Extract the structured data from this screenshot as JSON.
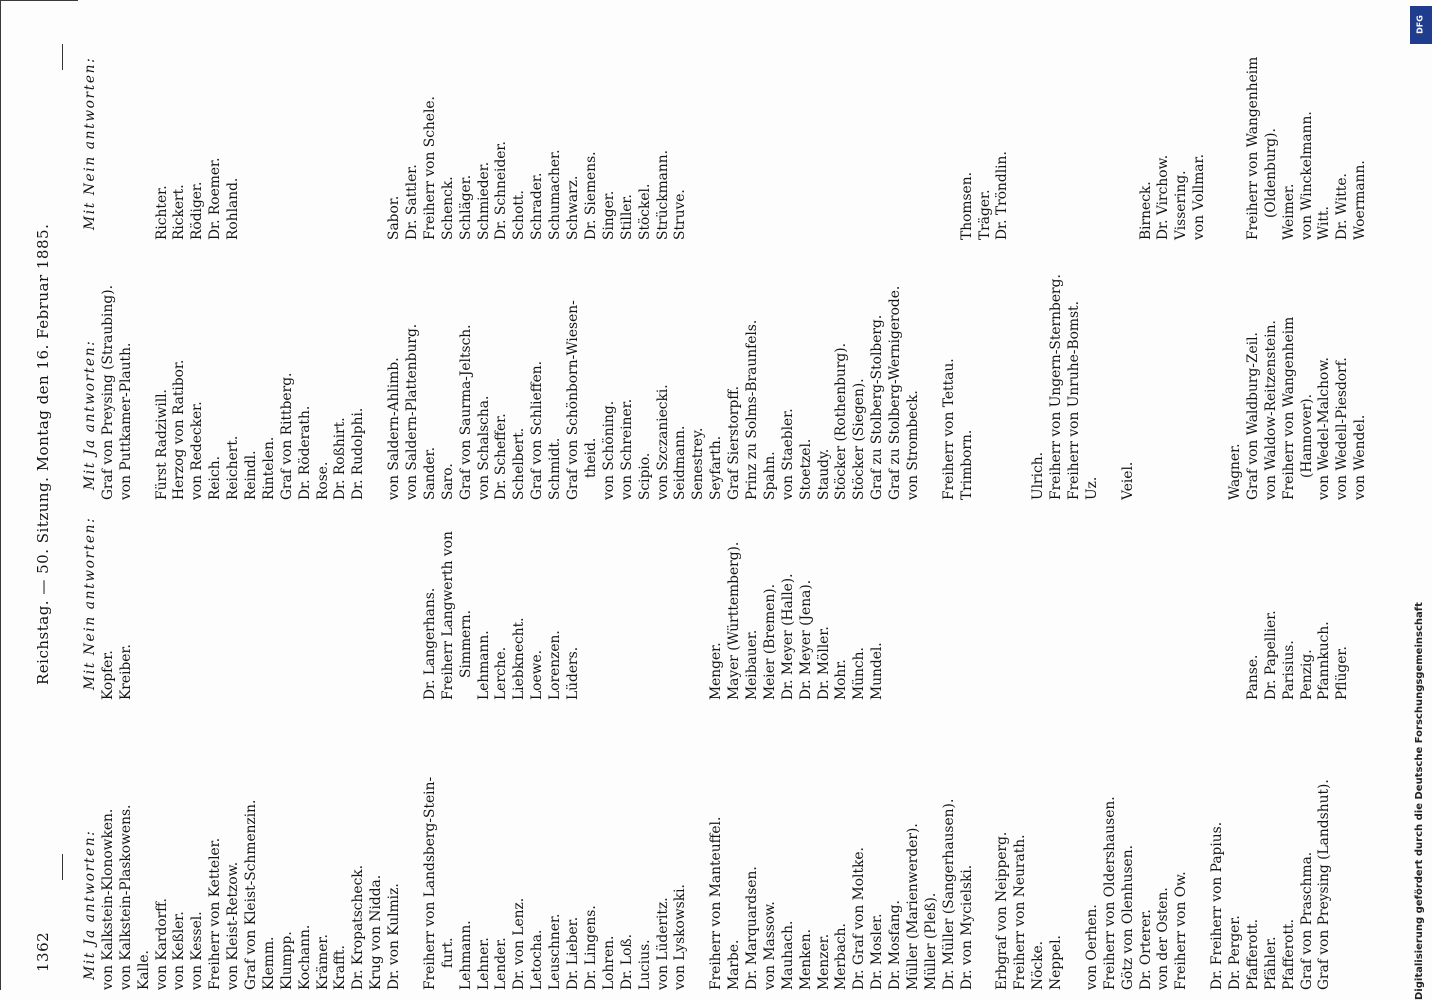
{
  "header": {
    "page_number": "1362",
    "title": "Reichstag. — 50. Sitzung. Montag den 16. Februar 1885."
  },
  "credit": "Digitalisierung gefördert durch die Deutsche Forschungsgemeinschaft",
  "stamp": "DFG",
  "columns": [
    {
      "head": "Mit Ja antworten:",
      "lines": [
        "von Kalkstein-Klonowken.",
        "von Kalkstein-Plaskowens.",
        "Kalle.",
        "von Kardorff.",
        "von Keßler.",
        "von Kessel.",
        "Freiherr von Ketteler.",
        "von Kleist-Retzow.",
        "Graf von Kleist-Schmenzin.",
        "Klemm.",
        "Klumpp.",
        "Kochann.",
        "Krämer.",
        "Krafft.",
        "Dr. Kropatscheck.",
        "Krug von Nidda.",
        "Dr. von Kulmiz.",
        "",
        "Freiherr von Landsberg-Stein-",
        "_furt.",
        "Lehmann.",
        "Lehner.",
        "Lender.",
        "Dr. von Lenz.",
        "Letocha.",
        "Leuschner.",
        "Dr. Lieber.",
        "Dr. Lingens.",
        "Lohren.",
        "Dr. Loß.",
        "Lucius.",
        "von Lüderitz.",
        "von Lyskowski.",
        "",
        "Freiherr von Manteuffel.",
        "Marbe.",
        "Dr. Marquardsen.",
        "von Massow.",
        "Mauhach.",
        "Menken.",
        "Menzer.",
        "Merbach.",
        "Dr. Graf von Moltke.",
        "Dr. Mosler.",
        "Dr. Mosfang.",
        "Müller (Marienwerder).",
        "Müller (Pleß).",
        "Dr. Müller (Sangerhausen).",
        "Dr. von Mycielski.",
        "",
        "Erbgraf von Neipperg.",
        "Freiherr von Neurath.",
        "Nöcke.",
        "Neppel.",
        "",
        "von Oerhen.",
        "Freiherr von Oldershausen.",
        "Götz von Olenhusen.",
        "Dr. Orterer.",
        "von der Osten.",
        "Freiherr von Ow.",
        "",
        "Dr. Freiherr von Papius.",
        "Dr. Perger.",
        "Pfafferott.",
        "Pfähler.",
        "Pfafferott.",
        "Graf von Praschma.",
        "Graf von Preysing (Landshut)."
      ]
    },
    {
      "head": "Mit Nein antworten:",
      "lines": [
        "Kopfer.",
        "Kreiber.",
        "",
        "",
        "",
        "",
        "",
        "",
        "",
        "",
        "",
        "",
        "",
        "",
        "",
        "",
        "",
        "",
        "Dr. Langerhans.",
        "Freiherr Langwerth von",
        "_Simmern.",
        "Lehmann.",
        "Lerche.",
        "Liebknecht.",
        "Loewe.",
        "Lorenzen.",
        "Lüders.",
        "",
        "",
        "",
        "",
        "",
        "",
        "",
        "Menger.",
        "Mayer (Württemberg).",
        "Meibauer.",
        "Meier (Bremen).",
        "Dr. Meyer (Halle).",
        "Dr. Meyer (Jena).",
        "Dr. Möller.",
        "Mohr.",
        "Münch.",
        "Mundel.",
        "",
        "",
        "",
        "",
        "",
        "",
        "",
        "",
        "",
        "",
        "",
        "",
        "",
        "",
        "",
        "",
        "",
        "",
        "",
        "",
        "Panse.",
        "Dr. Papellier.",
        "Parisius.",
        "Penzig.",
        "Pfannkuch.",
        "Pflüger."
      ]
    },
    {
      "head": "Mit Ja antworten:",
      "lines": [
        "Graf von Preysing (Straubing).",
        "von Puttkamer-Plauth.",
        "",
        "Fürst Radziwill.",
        "Herzog von Ratibor.",
        "von Redecker.",
        "Reich.",
        "Reichert.",
        "Reindl.",
        "Rintelen.",
        "Graf von Rittberg.",
        "Dr. Röderath.",
        "Rose.",
        "Dr. Roßhirt.",
        "Dr. Rudolphi.",
        "",
        "von Saldern-Ahlimb.",
        "von Saldern-Plattenburg.",
        "Sander.",
        "Saro.",
        "Graf von Saurma-Jeltsch.",
        "von Schalscha.",
        "Dr. Scheffer.",
        "Schelbert.",
        "Graf von Schlieffen.",
        "Schmidt.",
        "Graf von Schönborn-Wiesen-",
        "_theid.",
        "von Schöning.",
        "von Schreiner.",
        "Scipio.",
        "von Szczaniecki.",
        "Seidmann.",
        "Senestrey.",
        "Seyfarth.",
        "Graf Sierstorpff.",
        "Prinz zu Solms-Braunfels.",
        "Spahn.",
        "von Staebler.",
        "Stoetzel.",
        "Staudy.",
        "Stöcker (Rothenburg).",
        "Stöcker (Siegen).",
        "Graf zu Stolberg-Stolberg.",
        "Graf zu Stolberg-Wernigerode.",
        "von Strombeck.",
        "",
        "Freiherr von Tettau.",
        "Trimborn.",
        "",
        "",
        "",
        "Ulrich.",
        "Freiherr von Ungern-Sternberg.",
        "Freiherr von Unruhe-Bomst.",
        "Uz.",
        "",
        "Veiel.",
        "",
        "",
        "",
        "",
        "",
        "Wagner.",
        "Graf von Waldburg-Zeil.",
        "von Waldow-Reitzenstein.",
        "Freiherr von Wangenheim",
        "_(Hannover).",
        "von Wedel-Malchow.",
        "von Wedell-Piesdorf.",
        "von Wendel."
      ]
    },
    {
      "head": "Mit Nein antworten:",
      "lines": [
        "",
        "",
        "",
        "Richter.",
        "Rickert.",
        "Rödiger.",
        "Dr. Roemer.",
        "Rohland.",
        "",
        "",
        "",
        "",
        "",
        "",
        "",
        "",
        "Sabor.",
        "Dr. Sattler.",
        "Freiherr von Schele.",
        "Schenck.",
        "Schläger.",
        "Schmieder.",
        "Dr. Schneider.",
        "Schott.",
        "Schrader.",
        "Schumacher.",
        "Schwarz.",
        "Dr. Siemens.",
        "Singer.",
        "Stiller.",
        "Stöckel.",
        "Strückmann.",
        "Struve.",
        "",
        "",
        "",
        "",
        "",
        "",
        "",
        "",
        "",
        "",
        "",
        "",
        "",
        "",
        "",
        "Thomsen.",
        "Träger.",
        "Dr. Tröndlin.",
        "",
        "",
        "",
        "",
        "",
        "",
        "",
        "Birneck.",
        "Dr. Virchow.",
        "Vissering.",
        "von Vollmar.",
        "",
        "",
        "Freiherr von Wangenheim",
        "_(Oldenburg).",
        "Weimer.",
        "von Winckelmann.",
        "Witt.",
        "Dr. Witte.",
        "Woermann."
      ]
    }
  ]
}
